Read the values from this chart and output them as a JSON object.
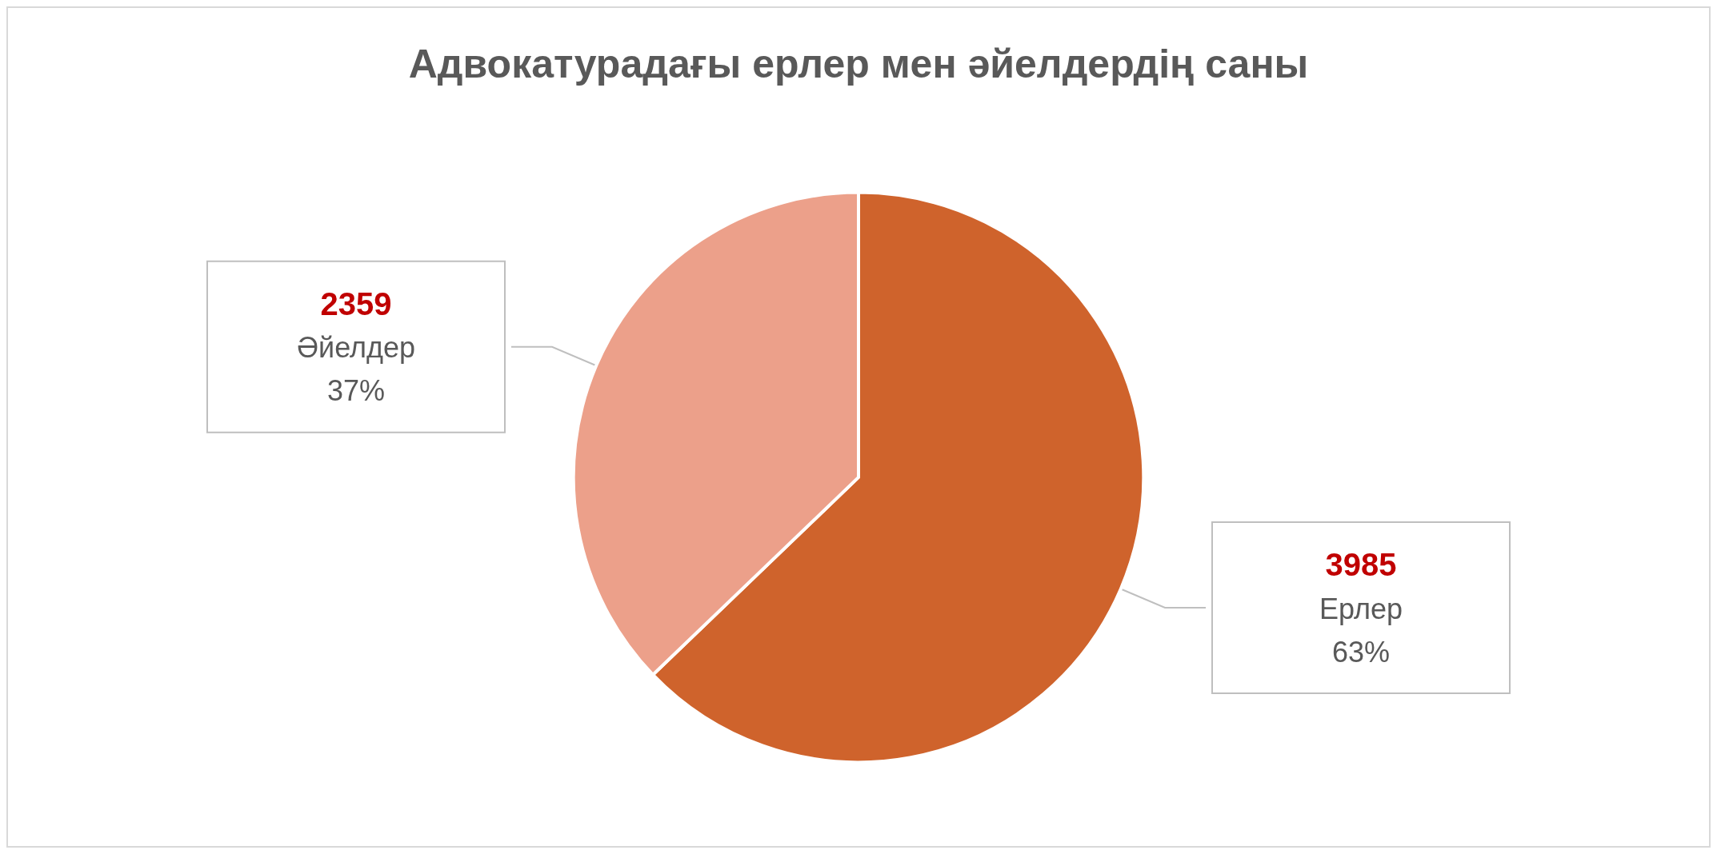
{
  "chart_data": {
    "type": "pie",
    "title": "Адвокатурадағы ерлер мен әйелдердің саны",
    "categories": [
      "Ерлер",
      "Әйелдер"
    ],
    "values": [
      3985,
      2359
    ],
    "colors": [
      "#cf632c",
      "#eca08a"
    ],
    "data_labels": true,
    "annotations": [
      {
        "text": "63%",
        "x": "Ерлер"
      },
      {
        "text": "37%",
        "x": "Әйелдер"
      }
    ],
    "legend": false
  }
}
